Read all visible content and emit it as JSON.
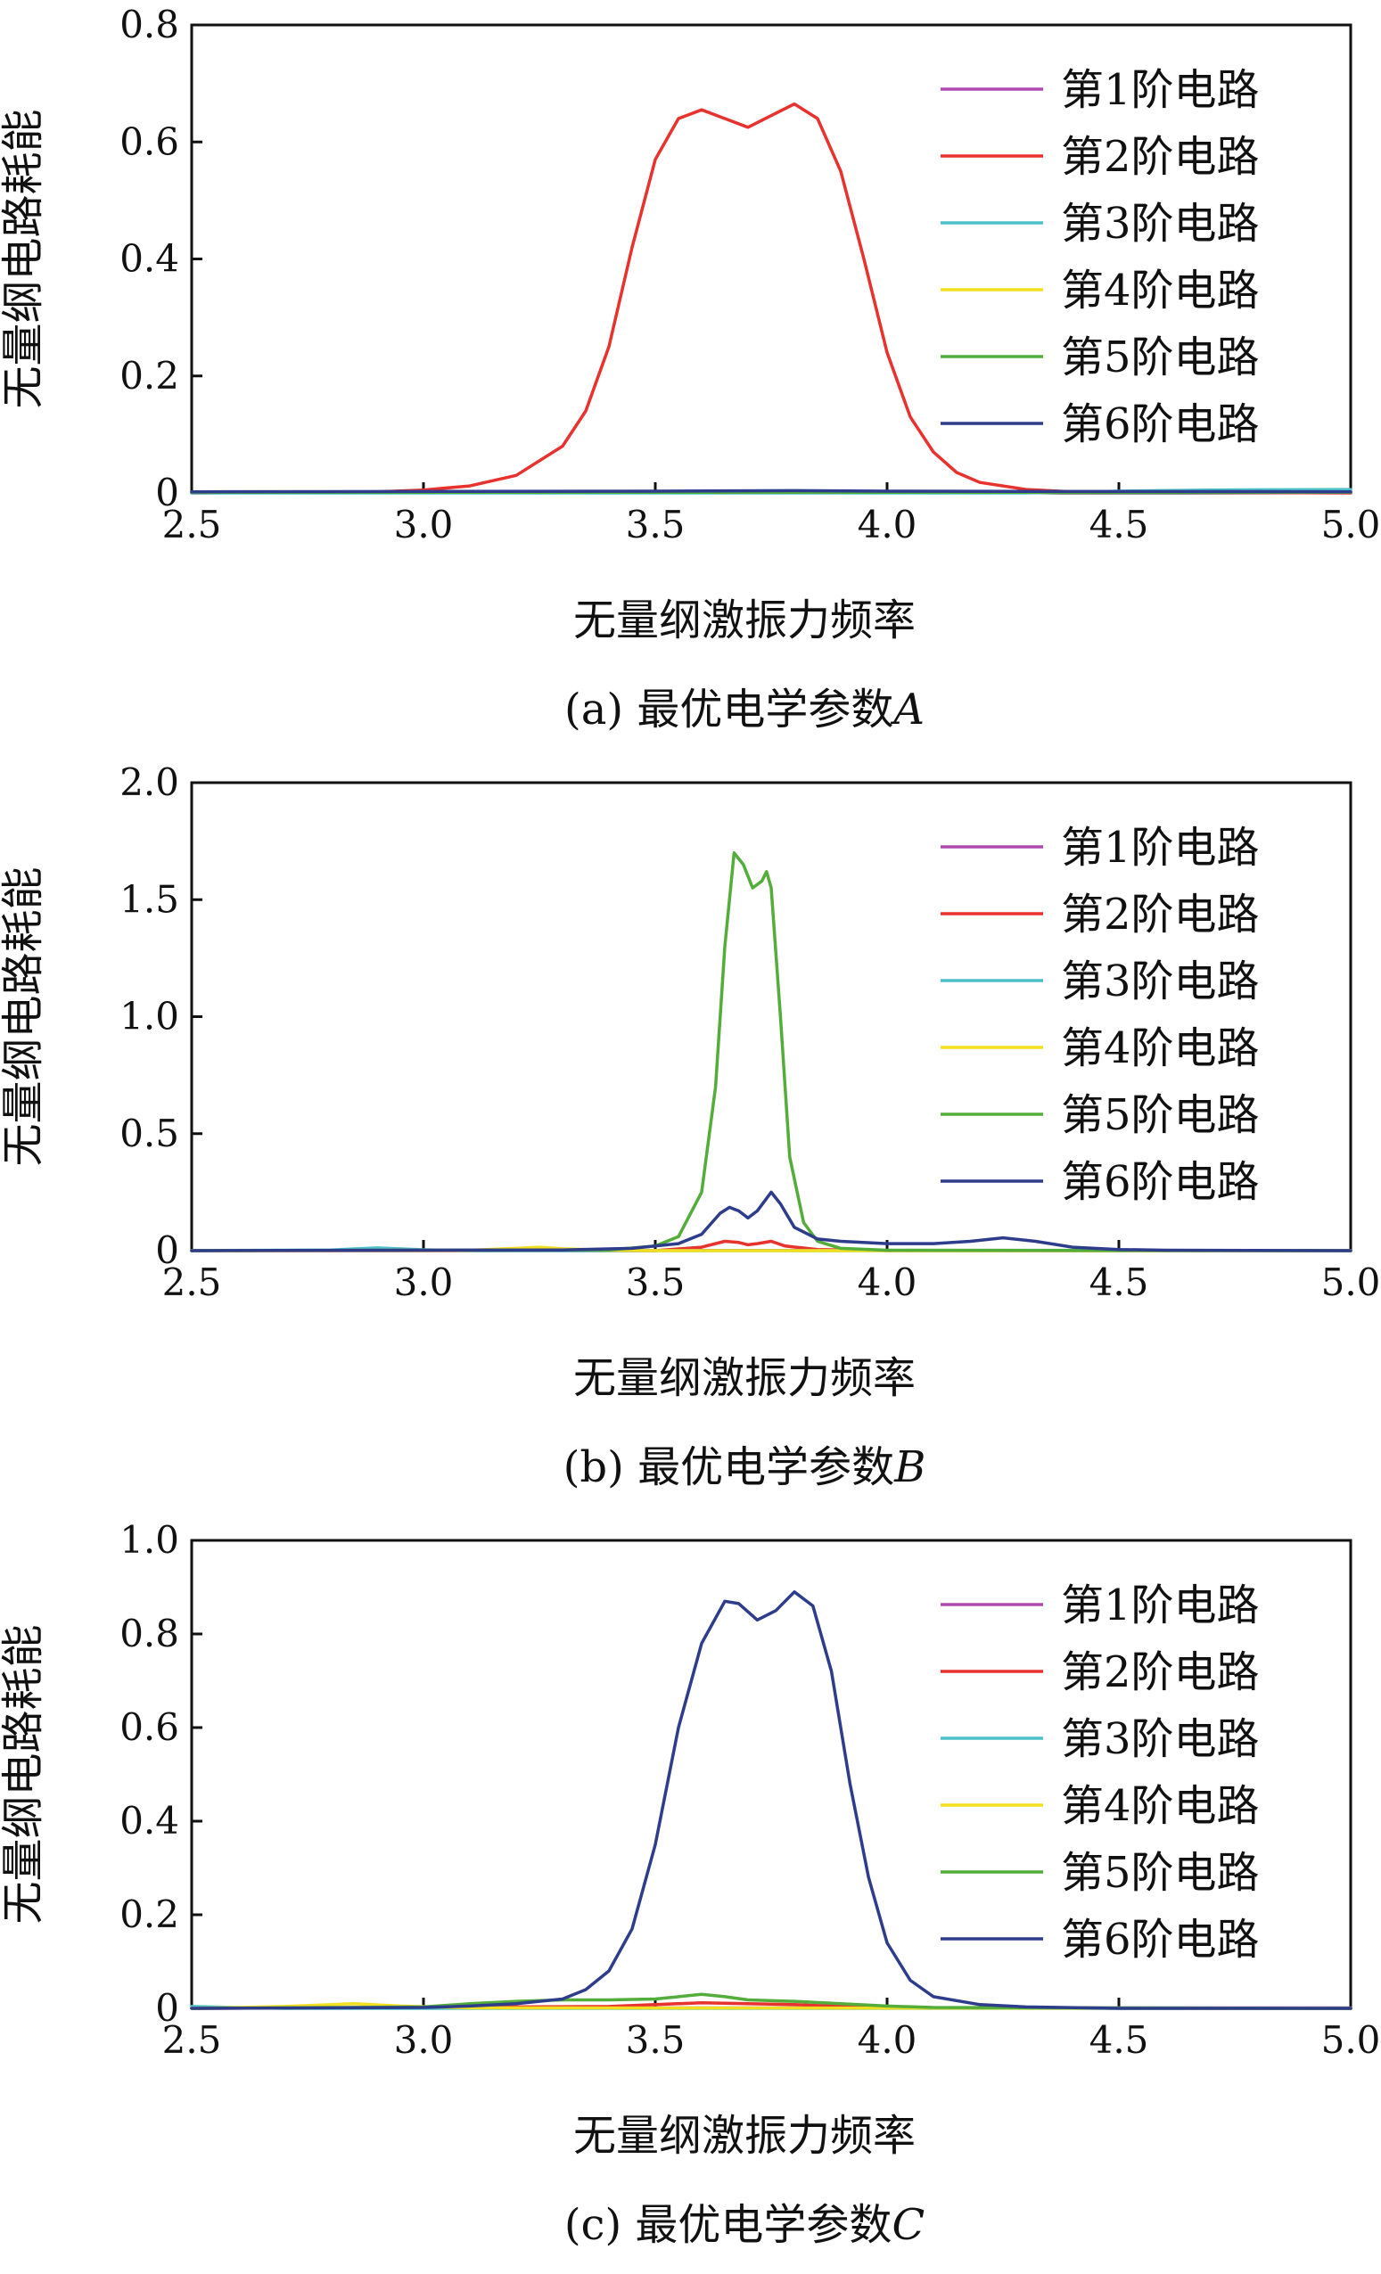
{
  "chart_data": [
    {
      "type": "line",
      "caption": "(a) 最优电学参数A",
      "caption_text": "(a) 最优电学参数",
      "caption_var": "A",
      "xlabel": "无量纲激振力频率",
      "ylabel": "无量纲电路耗能",
      "xlim": [
        2.5,
        5.0
      ],
      "ylim": [
        0,
        0.8
      ],
      "xticks": [
        2.5,
        3.0,
        3.5,
        4.0,
        4.5,
        5.0
      ],
      "xtick_labels": [
        "2.5",
        "3.0",
        "3.5",
        "4.0",
        "4.5",
        "5.0"
      ],
      "yticks": [
        0,
        0.2,
        0.4,
        0.6,
        0.8
      ],
      "ytick_labels": [
        "0",
        "0.2",
        "0.4",
        "0.6",
        "0.8"
      ],
      "legend_position": "top-right",
      "series": [
        {
          "name": "第1阶电路",
          "color": "#b04ab0",
          "points": [
            [
              2.5,
              0.001
            ],
            [
              5.0,
              0.001
            ]
          ]
        },
        {
          "name": "第2阶电路",
          "color": "#e8322e",
          "points": [
            [
              2.5,
              0.0
            ],
            [
              2.9,
              0.002
            ],
            [
              3.0,
              0.005
            ],
            [
              3.1,
              0.012
            ],
            [
              3.2,
              0.03
            ],
            [
              3.3,
              0.08
            ],
            [
              3.35,
              0.14
            ],
            [
              3.4,
              0.25
            ],
            [
              3.45,
              0.42
            ],
            [
              3.5,
              0.57
            ],
            [
              3.55,
              0.64
            ],
            [
              3.6,
              0.655
            ],
            [
              3.65,
              0.64
            ],
            [
              3.7,
              0.625
            ],
            [
              3.75,
              0.645
            ],
            [
              3.8,
              0.665
            ],
            [
              3.85,
              0.64
            ],
            [
              3.9,
              0.55
            ],
            [
              3.95,
              0.4
            ],
            [
              4.0,
              0.24
            ],
            [
              4.05,
              0.13
            ],
            [
              4.1,
              0.07
            ],
            [
              4.15,
              0.035
            ],
            [
              4.2,
              0.018
            ],
            [
              4.3,
              0.006
            ],
            [
              4.4,
              0.002
            ],
            [
              5.0,
              0.0
            ]
          ]
        },
        {
          "name": "第3阶电路",
          "color": "#4bc0c8",
          "points": [
            [
              2.5,
              0.0
            ],
            [
              4.3,
              0.0
            ],
            [
              4.5,
              0.003
            ],
            [
              4.7,
              0.005
            ],
            [
              5.0,
              0.006
            ]
          ]
        },
        {
          "name": "第4阶电路",
          "color": "#f2e020",
          "points": [
            [
              2.5,
              0.001
            ],
            [
              5.0,
              0.001
            ]
          ]
        },
        {
          "name": "第5阶电路",
          "color": "#52ad3a",
          "points": [
            [
              2.5,
              0.001
            ],
            [
              5.0,
              0.001
            ]
          ]
        },
        {
          "name": "第6阶电路",
          "color": "#2e3c8c",
          "points": [
            [
              2.5,
              0.002
            ],
            [
              3.5,
              0.003
            ],
            [
              3.8,
              0.004
            ],
            [
              4.0,
              0.003
            ],
            [
              5.0,
              0.002
            ]
          ]
        }
      ]
    },
    {
      "type": "line",
      "caption": "(b) 最优电学参数B",
      "caption_text": "(b) 最优电学参数",
      "caption_var": "B",
      "xlabel": "无量纲激振力频率",
      "ylabel": "无量纲电路耗能",
      "xlim": [
        2.5,
        5.0
      ],
      "ylim": [
        0,
        2.0
      ],
      "xticks": [
        2.5,
        3.0,
        3.5,
        4.0,
        4.5,
        5.0
      ],
      "xtick_labels": [
        "2.5",
        "3.0",
        "3.5",
        "4.0",
        "4.5",
        "5.0"
      ],
      "yticks": [
        0,
        0.5,
        1.0,
        1.5,
        2.0
      ],
      "ytick_labels": [
        "0",
        "0.5",
        "1.0",
        "1.5",
        "2.0"
      ],
      "legend_position": "top-right",
      "series": [
        {
          "name": "第1阶电路",
          "color": "#b04ab0",
          "points": [
            [
              2.5,
              0.001
            ],
            [
              5.0,
              0.001
            ]
          ]
        },
        {
          "name": "第2阶电路",
          "color": "#e8322e",
          "points": [
            [
              2.5,
              0.0
            ],
            [
              3.5,
              0.0
            ],
            [
              3.6,
              0.015
            ],
            [
              3.65,
              0.04
            ],
            [
              3.68,
              0.035
            ],
            [
              3.7,
              0.025
            ],
            [
              3.72,
              0.03
            ],
            [
              3.75,
              0.04
            ],
            [
              3.78,
              0.02
            ],
            [
              3.85,
              0.005
            ],
            [
              4.0,
              0.0
            ],
            [
              5.0,
              0.0
            ]
          ]
        },
        {
          "name": "第3阶电路",
          "color": "#4bc0c8",
          "points": [
            [
              2.5,
              0.0
            ],
            [
              2.8,
              0.003
            ],
            [
              2.9,
              0.012
            ],
            [
              3.0,
              0.004
            ],
            [
              3.1,
              0.0
            ],
            [
              5.0,
              0.0
            ]
          ]
        },
        {
          "name": "第4阶电路",
          "color": "#f2e020",
          "points": [
            [
              2.5,
              0.0
            ],
            [
              3.1,
              0.002
            ],
            [
              3.2,
              0.01
            ],
            [
              3.25,
              0.015
            ],
            [
              3.3,
              0.008
            ],
            [
              3.4,
              0.002
            ],
            [
              3.5,
              0.0
            ],
            [
              5.0,
              0.0
            ]
          ]
        },
        {
          "name": "第5阶电路",
          "color": "#52ad3a",
          "points": [
            [
              2.5,
              0.0
            ],
            [
              3.4,
              0.003
            ],
            [
              3.5,
              0.02
            ],
            [
              3.55,
              0.06
            ],
            [
              3.6,
              0.25
            ],
            [
              3.63,
              0.7
            ],
            [
              3.65,
              1.3
            ],
            [
              3.67,
              1.7
            ],
            [
              3.69,
              1.65
            ],
            [
              3.71,
              1.55
            ],
            [
              3.73,
              1.58
            ],
            [
              3.74,
              1.62
            ],
            [
              3.75,
              1.55
            ],
            [
              3.77,
              1.0
            ],
            [
              3.79,
              0.4
            ],
            [
              3.82,
              0.12
            ],
            [
              3.85,
              0.04
            ],
            [
              3.9,
              0.01
            ],
            [
              4.0,
              0.002
            ],
            [
              5.0,
              0.0
            ]
          ]
        },
        {
          "name": "第6阶电路",
          "color": "#2e3c8c",
          "points": [
            [
              2.5,
              0.0
            ],
            [
              3.3,
              0.003
            ],
            [
              3.45,
              0.01
            ],
            [
              3.55,
              0.03
            ],
            [
              3.6,
              0.07
            ],
            [
              3.64,
              0.16
            ],
            [
              3.66,
              0.185
            ],
            [
              3.68,
              0.17
            ],
            [
              3.7,
              0.14
            ],
            [
              3.72,
              0.17
            ],
            [
              3.75,
              0.25
            ],
            [
              3.77,
              0.2
            ],
            [
              3.8,
              0.1
            ],
            [
              3.85,
              0.05
            ],
            [
              3.9,
              0.04
            ],
            [
              4.0,
              0.03
            ],
            [
              4.1,
              0.03
            ],
            [
              4.18,
              0.04
            ],
            [
              4.25,
              0.055
            ],
            [
              4.32,
              0.04
            ],
            [
              4.4,
              0.015
            ],
            [
              4.5,
              0.005
            ],
            [
              4.6,
              0.002
            ],
            [
              5.0,
              0.0
            ]
          ]
        }
      ]
    },
    {
      "type": "line",
      "caption": "(c) 最优电学参数C",
      "caption_text": "(c) 最优电学参数",
      "caption_var": "C",
      "xlabel": "无量纲激振力频率",
      "ylabel": "无量纲电路耗能",
      "xlim": [
        2.5,
        5.0
      ],
      "ylim": [
        0,
        1.0
      ],
      "xticks": [
        2.5,
        3.0,
        3.5,
        4.0,
        4.5,
        5.0
      ],
      "xtick_labels": [
        "2.5",
        "3.0",
        "3.5",
        "4.0",
        "4.5",
        "5.0"
      ],
      "yticks": [
        0,
        0.2,
        0.4,
        0.6,
        0.8,
        1.0
      ],
      "ytick_labels": [
        "0",
        "0.2",
        "0.4",
        "0.6",
        "0.8",
        "1.0"
      ],
      "legend_position": "top-right",
      "series": [
        {
          "name": "第1阶电路",
          "color": "#b04ab0",
          "points": [
            [
              2.5,
              0.001
            ],
            [
              5.0,
              0.001
            ]
          ]
        },
        {
          "name": "第2阶电路",
          "color": "#e8322e",
          "points": [
            [
              2.5,
              0.0
            ],
            [
              3.4,
              0.004
            ],
            [
              3.5,
              0.008
            ],
            [
              3.6,
              0.012
            ],
            [
              3.7,
              0.01
            ],
            [
              3.8,
              0.008
            ],
            [
              3.9,
              0.004
            ],
            [
              4.0,
              0.001
            ],
            [
              5.0,
              0.0
            ]
          ]
        },
        {
          "name": "第3阶电路",
          "color": "#4bc0c8",
          "points": [
            [
              2.5,
              0.004
            ],
            [
              2.6,
              0.002
            ],
            [
              2.7,
              0.0
            ],
            [
              5.0,
              0.0
            ]
          ]
        },
        {
          "name": "第4阶电路",
          "color": "#f2e020",
          "points": [
            [
              2.5,
              0.0
            ],
            [
              2.7,
              0.004
            ],
            [
              2.85,
              0.01
            ],
            [
              2.95,
              0.005
            ],
            [
              3.1,
              0.001
            ],
            [
              5.0,
              0.0
            ]
          ]
        },
        {
          "name": "第5阶电路",
          "color": "#52ad3a",
          "points": [
            [
              2.5,
              0.0
            ],
            [
              3.0,
              0.003
            ],
            [
              3.1,
              0.01
            ],
            [
              3.2,
              0.015
            ],
            [
              3.3,
              0.018
            ],
            [
              3.4,
              0.018
            ],
            [
              3.5,
              0.02
            ],
            [
              3.6,
              0.03
            ],
            [
              3.65,
              0.025
            ],
            [
              3.7,
              0.018
            ],
            [
              3.8,
              0.015
            ],
            [
              3.9,
              0.01
            ],
            [
              4.0,
              0.005
            ],
            [
              4.1,
              0.002
            ],
            [
              5.0,
              0.0
            ]
          ]
        },
        {
          "name": "第6阶电路",
          "color": "#2e3c8c",
          "points": [
            [
              2.5,
              0.0
            ],
            [
              3.0,
              0.002
            ],
            [
              3.1,
              0.005
            ],
            [
              3.2,
              0.01
            ],
            [
              3.3,
              0.02
            ],
            [
              3.35,
              0.04
            ],
            [
              3.4,
              0.08
            ],
            [
              3.45,
              0.17
            ],
            [
              3.5,
              0.35
            ],
            [
              3.55,
              0.6
            ],
            [
              3.6,
              0.78
            ],
            [
              3.65,
              0.87
            ],
            [
              3.68,
              0.865
            ],
            [
              3.72,
              0.83
            ],
            [
              3.76,
              0.85
            ],
            [
              3.8,
              0.89
            ],
            [
              3.84,
              0.86
            ],
            [
              3.88,
              0.72
            ],
            [
              3.92,
              0.48
            ],
            [
              3.96,
              0.28
            ],
            [
              4.0,
              0.14
            ],
            [
              4.05,
              0.06
            ],
            [
              4.1,
              0.025
            ],
            [
              4.2,
              0.008
            ],
            [
              4.3,
              0.003
            ],
            [
              4.5,
              0.0
            ],
            [
              5.0,
              0.0
            ]
          ]
        }
      ]
    }
  ]
}
